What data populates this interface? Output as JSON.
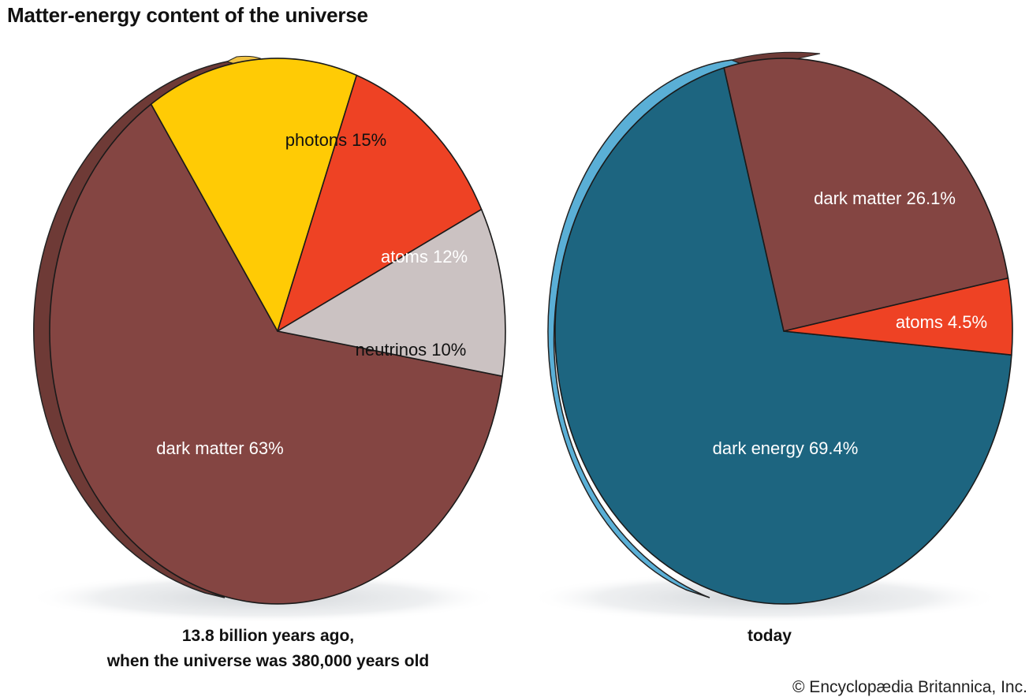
{
  "title": "Matter-energy content of the universe",
  "captions": {
    "left_line1": "13.8 billion years ago,",
    "left_line2": "when the universe was 380,000 years old",
    "right": "today"
  },
  "credit": "© Encyclopædia Britannica, Inc.",
  "chart_data": [
    {
      "type": "pie",
      "caption": "13.8 billion years ago, when the universe was 380,000 years old",
      "slices": [
        {
          "label": "dark matter 63%",
          "name": "dark matter",
          "value": 63,
          "color": "#844542"
        },
        {
          "label": "photons 15%",
          "name": "photons",
          "value": 15,
          "color": "#FFCB05"
        },
        {
          "label": "atoms 12%",
          "name": "atoms",
          "value": 12,
          "color": "#EE4224"
        },
        {
          "label": "neutrinos 10%",
          "name": "neutrinos",
          "value": 10,
          "color": "#CBC2C2"
        }
      ],
      "edge_color": "#6E3A36"
    },
    {
      "type": "pie",
      "caption": "today",
      "slices": [
        {
          "label": "dark energy 69.4%",
          "name": "dark energy",
          "value": 69.4,
          "color": "#1D6580"
        },
        {
          "label": "dark matter 26.1%",
          "name": "dark matter",
          "value": 26.1,
          "color": "#844542"
        },
        {
          "label": "atoms 4.5%",
          "name": "atoms",
          "value": 4.5,
          "color": "#EE4224"
        }
      ],
      "edge_color": "#5AAFD6"
    }
  ]
}
